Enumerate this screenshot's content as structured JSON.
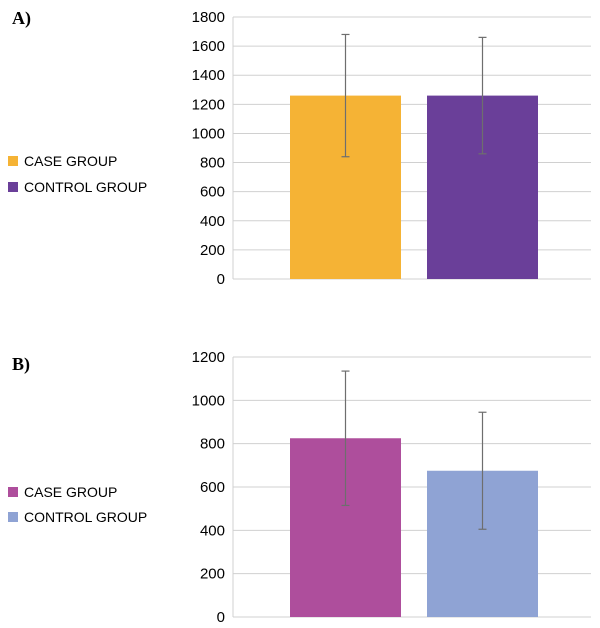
{
  "chart_data": [
    {
      "type": "bar",
      "panel_label": "A)",
      "categories": [
        "CASE GROUP",
        "CONTROL GROUP"
      ],
      "values": [
        1260,
        1260
      ],
      "error": [
        420,
        400
      ],
      "colors": [
        "#F5B335",
        "#6A3F99"
      ],
      "ylim": [
        0,
        1800
      ],
      "yticks": [
        0,
        200,
        400,
        600,
        800,
        1000,
        1200,
        1400,
        1600,
        1800
      ],
      "grid": true,
      "legend": {
        "position": "left",
        "entries": [
          {
            "label": "CASE GROUP",
            "color": "#F5B335"
          },
          {
            "label": "CONTROL GROUP",
            "color": "#6A3F99"
          }
        ]
      }
    },
    {
      "type": "bar",
      "panel_label": "B)",
      "categories": [
        "CASE GROUP",
        "CONTROL GROUP"
      ],
      "values": [
        825,
        675
      ],
      "error": [
        310,
        270
      ],
      "colors": [
        "#AE4E9C",
        "#8FA3D4"
      ],
      "ylim": [
        0,
        1200
      ],
      "yticks": [
        0,
        200,
        400,
        600,
        800,
        1000,
        1200
      ],
      "grid": true,
      "legend": {
        "position": "left",
        "entries": [
          {
            "label": "CASE GROUP",
            "color": "#AE4E9C"
          },
          {
            "label": "CONTROL GROUP",
            "color": "#8FA3D4"
          }
        ]
      }
    }
  ]
}
